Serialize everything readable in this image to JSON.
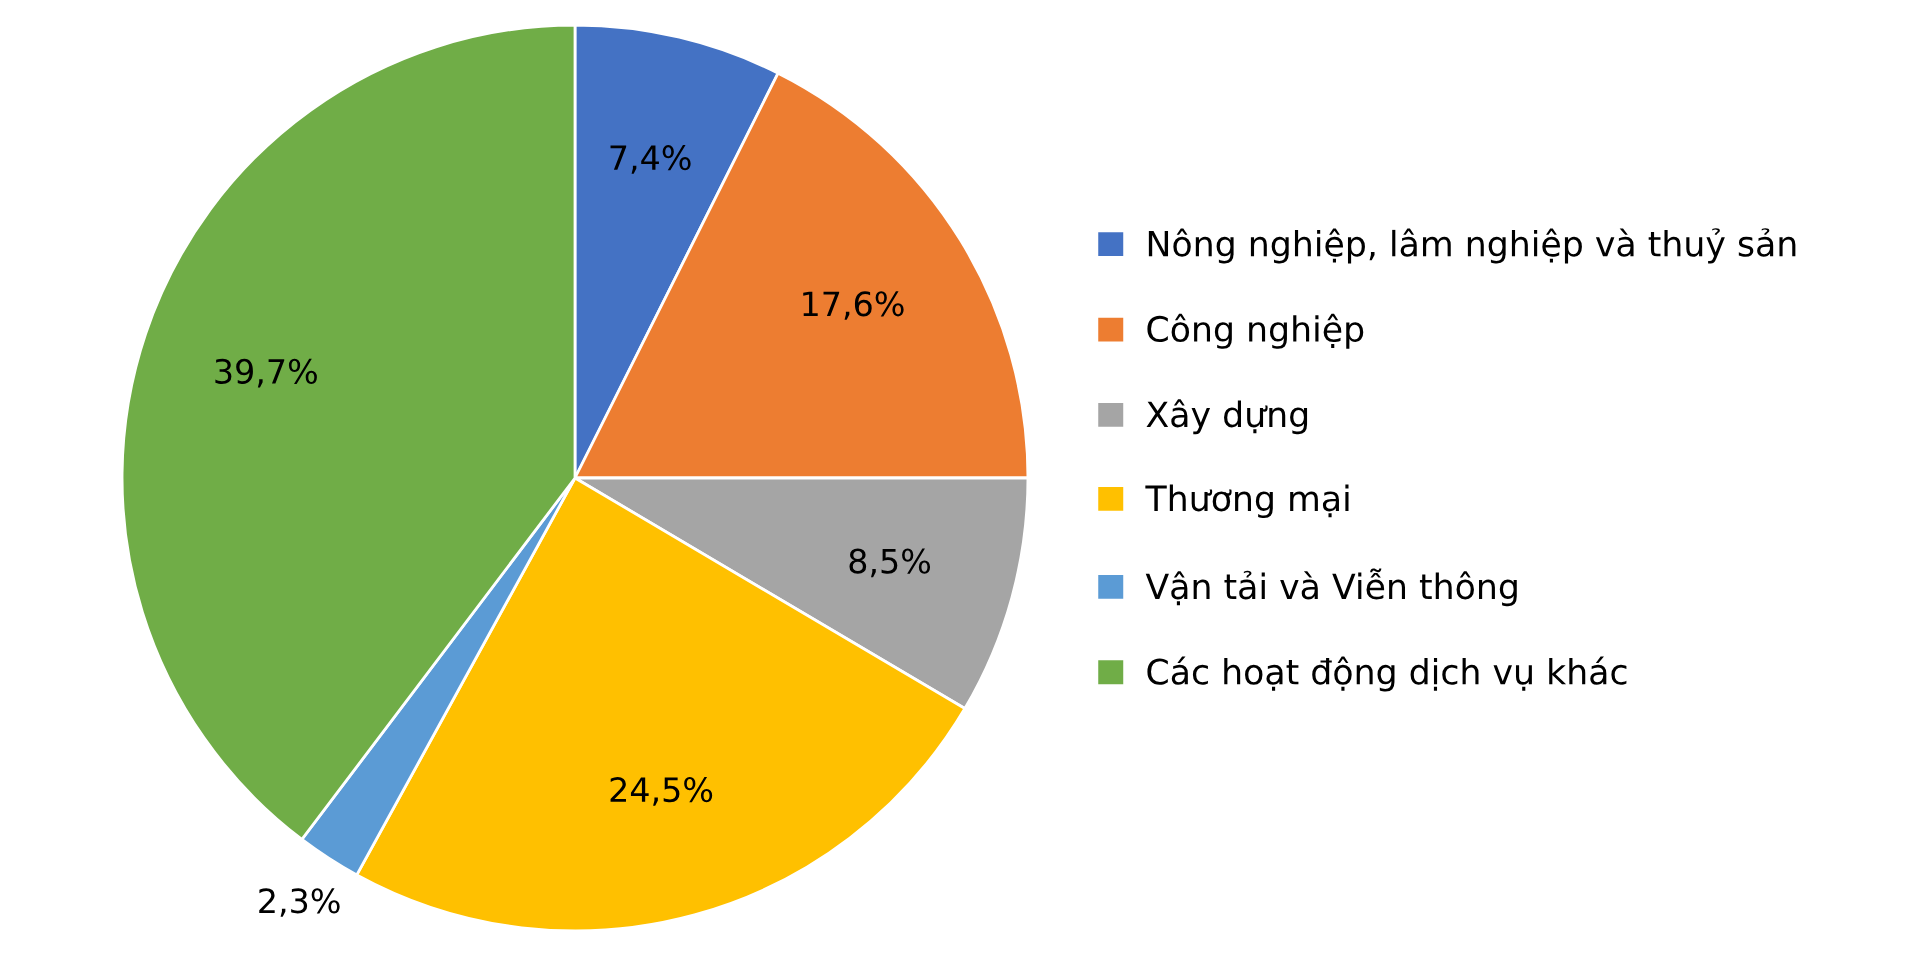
{
  "chart_data": {
    "type": "pie",
    "categories": [
      "Nông nghiệp, lâm nghiệp và thuỷ sản",
      "Công nghiệp",
      "Xây dựng",
      "Thương mại",
      "Vận tải và Viễn thông",
      "Các hoạt động dịch vụ khác"
    ],
    "values": [
      7.4,
      17.6,
      8.5,
      24.5,
      2.3,
      39.7
    ],
    "colors": [
      "#4472c4",
      "#ed7d31",
      "#a5a5a5",
      "#ffc000",
      "#5b9bd5",
      "#70ad47"
    ],
    "value_labels": [
      "7,4%",
      "17,6%",
      "8,5%",
      "24,5%",
      "2,3%",
      "39,7%"
    ],
    "legend": "right"
  }
}
